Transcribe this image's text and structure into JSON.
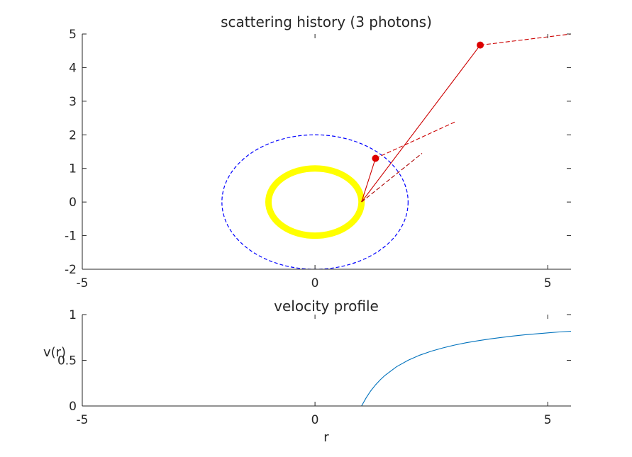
{
  "chart_data": [
    {
      "type": "line",
      "title": "scattering history (3 photons)",
      "xlabel": "",
      "ylabel": "",
      "xlim": [
        -5,
        5.5
      ],
      "ylim": [
        -2,
        5
      ],
      "xticks": [
        -5,
        0,
        5
      ],
      "yticks": [
        -2,
        -1,
        0,
        1,
        2,
        3,
        4,
        5
      ],
      "grid": false,
      "legend": "none",
      "shapes": [
        {
          "kind": "circle",
          "cx": 0,
          "cy": 0,
          "r": 1,
          "color": "#ffff00",
          "style": "solid-thick"
        },
        {
          "kind": "circle",
          "cx": 0,
          "cy": 0,
          "r": 2,
          "color": "#0000ff",
          "style": "dashed"
        }
      ],
      "photon_paths": [
        {
          "x": [
            1.0,
            3.55
          ],
          "y": [
            0.0,
            4.67
          ],
          "color": "#cc0000",
          "style": "solid"
        },
        {
          "x": [
            3.55,
            5.5
          ],
          "y": [
            4.67,
            5.0
          ],
          "color": "#cc0000",
          "style": "dashed"
        },
        {
          "x": [
            1.0,
            1.3
          ],
          "y": [
            0.0,
            1.3
          ],
          "color": "#cc0000",
          "style": "solid"
        },
        {
          "x": [
            1.3,
            3.0
          ],
          "y": [
            1.3,
            2.38
          ],
          "color": "#cc0000",
          "style": "dashed"
        },
        {
          "x": [
            1.0,
            2.3
          ],
          "y": [
            0.0,
            1.45
          ],
          "color": "#aa0000",
          "style": "dashed"
        }
      ],
      "scatter_points": [
        {
          "x": 3.55,
          "y": 4.67,
          "color": "#dd0000"
        },
        {
          "x": 1.3,
          "y": 1.3,
          "color": "#dd0000"
        }
      ]
    },
    {
      "type": "line",
      "title": "velocity profile",
      "xlabel": "r",
      "ylabel": "v(r)",
      "xlim": [
        -5,
        5.5
      ],
      "ylim": [
        0,
        1
      ],
      "xticks": [
        -5,
        0,
        5
      ],
      "yticks": [
        0,
        0.5,
        1
      ],
      "grid": false,
      "legend": "none",
      "series": [
        {
          "color": "#0072bd",
          "x": [
            1.0,
            1.1,
            1.2,
            1.3,
            1.4,
            1.5,
            1.75,
            2.0,
            2.25,
            2.5,
            2.75,
            3.0,
            3.25,
            3.5,
            3.75,
            4.0,
            4.25,
            4.5,
            4.75,
            5.0,
            5.25,
            5.5
          ],
          "y": [
            0.0,
            0.091,
            0.167,
            0.231,
            0.286,
            0.333,
            0.429,
            0.5,
            0.556,
            0.6,
            0.636,
            0.667,
            0.692,
            0.714,
            0.733,
            0.75,
            0.765,
            0.778,
            0.789,
            0.8,
            0.81,
            0.818
          ]
        }
      ]
    }
  ]
}
